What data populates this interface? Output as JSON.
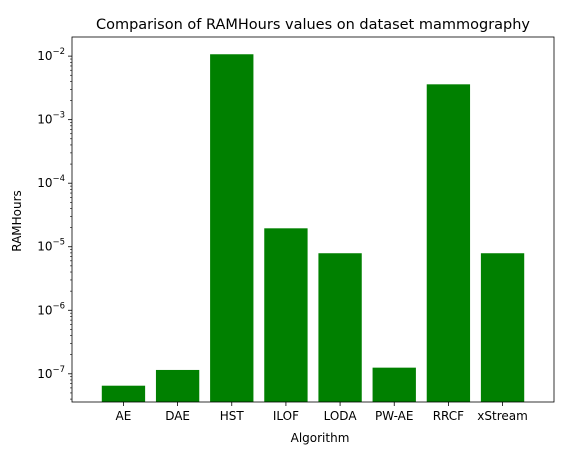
{
  "chart_data": {
    "type": "bar",
    "title": "Comparison of RAMHours values on dataset mammography",
    "xlabel": "Algorithm",
    "ylabel": "RAMHours",
    "yscale": "log",
    "ylim": [
      3.6e-08,
      0.02
    ],
    "grid": false,
    "bar_color": "#008000",
    "categories": [
      "AE",
      "DAE",
      "HST",
      "ILOF",
      "LODA",
      "PW-AE",
      "RRCF",
      "xStream"
    ],
    "values": [
      6.5e-08,
      1.15e-07,
      0.0107,
      1.95e-05,
      7.9e-06,
      1.25e-07,
      0.0036,
      7.9e-06
    ],
    "yticks": [
      {
        "value": 1e-07,
        "base": "10",
        "exp": "−7"
      },
      {
        "value": 1e-06,
        "base": "10",
        "exp": "−6"
      },
      {
        "value": 1e-05,
        "base": "10",
        "exp": "−5"
      },
      {
        "value": 0.0001,
        "base": "10",
        "exp": "−4"
      },
      {
        "value": 0.001,
        "base": "10",
        "exp": "−3"
      },
      {
        "value": 0.01,
        "base": "10",
        "exp": "−2"
      }
    ]
  }
}
